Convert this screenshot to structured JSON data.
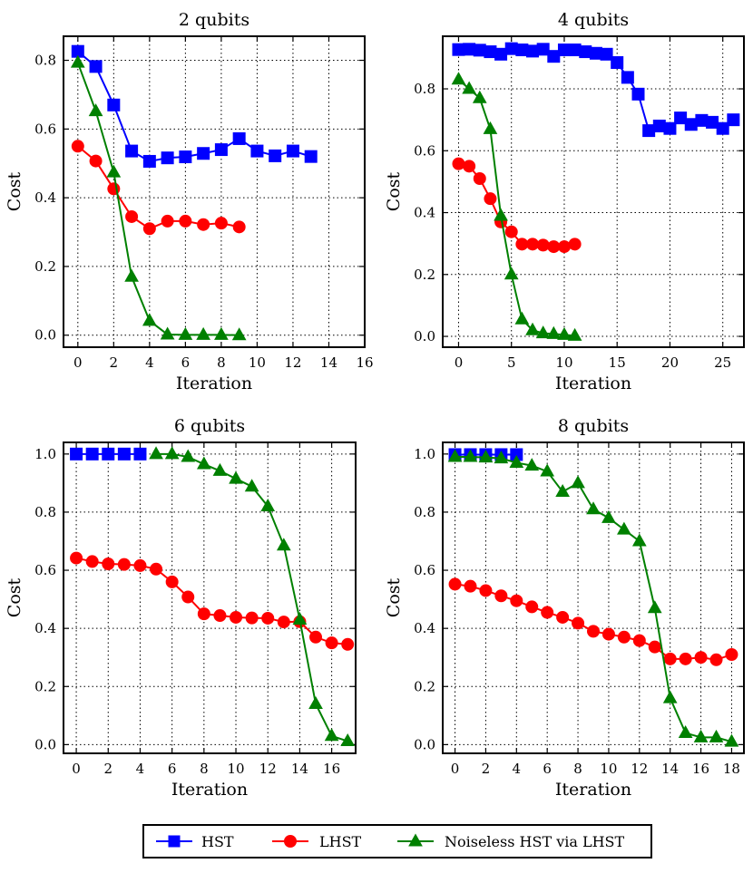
{
  "legend": {
    "entries": [
      {
        "label": "HST",
        "color": "#0000ff",
        "marker": "square"
      },
      {
        "label": "LHST",
        "color": "#ff0000",
        "marker": "circle"
      },
      {
        "label": "Noiseless HST via LHST",
        "color": "#008000",
        "marker": "triangle"
      }
    ]
  },
  "chart_data": [
    {
      "type": "line",
      "title": "2 qubits",
      "xlabel": "Iteration",
      "ylabel": "Cost",
      "xlim": [
        -0.8,
        16
      ],
      "ylim": [
        -0.035,
        0.87
      ],
      "xticks": [
        0,
        2,
        4,
        6,
        8,
        10,
        12,
        14,
        16
      ],
      "yticks": [
        0.0,
        0.2,
        0.4,
        0.6,
        0.8
      ],
      "grid": true,
      "series": [
        {
          "name": "HST",
          "x": [
            0,
            1,
            2,
            3,
            4,
            5,
            6,
            7,
            8,
            9,
            10,
            11,
            12,
            13
          ],
          "values": [
            0.826,
            0.782,
            0.67,
            0.536,
            0.506,
            0.516,
            0.519,
            0.529,
            0.54,
            0.572,
            0.536,
            0.522,
            0.536,
            0.52
          ]
        },
        {
          "name": "LHST",
          "x": [
            0,
            1,
            2,
            3,
            4,
            5,
            6,
            7,
            8,
            9
          ],
          "values": [
            0.55,
            0.507,
            0.426,
            0.345,
            0.31,
            0.332,
            0.332,
            0.322,
            0.326,
            0.315
          ]
        },
        {
          "name": "Noiseless HST via LHST",
          "x": [
            0,
            1,
            2,
            3,
            4,
            5,
            6,
            7,
            8,
            9
          ],
          "values": [
            0.793,
            0.652,
            0.474,
            0.17,
            0.042,
            0.002,
            0.001,
            0.001,
            0.001,
            0.0
          ]
        }
      ]
    },
    {
      "type": "line",
      "title": "4 qubits",
      "xlabel": "Iteration",
      "ylabel": "Cost",
      "xlim": [
        -1.5,
        27
      ],
      "ylim": [
        -0.035,
        0.97
      ],
      "xticks": [
        0,
        5,
        10,
        15,
        20,
        25
      ],
      "yticks": [
        0.0,
        0.2,
        0.4,
        0.6,
        0.8
      ],
      "grid": true,
      "series": [
        {
          "name": "HST",
          "x": [
            0,
            1,
            2,
            3,
            4,
            5,
            6,
            7,
            8,
            9,
            10,
            11,
            12,
            13,
            14,
            15,
            16,
            17,
            18,
            19,
            20,
            21,
            22,
            23,
            24,
            25,
            26
          ],
          "values": [
            0.927,
            0.928,
            0.925,
            0.92,
            0.912,
            0.93,
            0.926,
            0.922,
            0.928,
            0.905,
            0.926,
            0.926,
            0.92,
            0.915,
            0.912,
            0.885,
            0.837,
            0.783,
            0.665,
            0.68,
            0.672,
            0.706,
            0.685,
            0.698,
            0.692,
            0.672,
            0.7
          ]
        },
        {
          "name": "LHST",
          "x": [
            0,
            1,
            2,
            3,
            4,
            5,
            6,
            7,
            8,
            9,
            10,
            11
          ],
          "values": [
            0.558,
            0.55,
            0.51,
            0.445,
            0.37,
            0.338,
            0.298,
            0.298,
            0.295,
            0.29,
            0.29,
            0.298
          ]
        },
        {
          "name": "Noiseless HST via LHST",
          "x": [
            0,
            1,
            2,
            3,
            4,
            5,
            6,
            7,
            8,
            9,
            10,
            11
          ],
          "values": [
            0.83,
            0.8,
            0.77,
            0.67,
            0.39,
            0.2,
            0.055,
            0.02,
            0.01,
            0.008,
            0.005,
            0.002
          ]
        }
      ]
    },
    {
      "type": "line",
      "title": "6 qubits",
      "xlabel": "Iteration",
      "ylabel": "Cost",
      "xlim": [
        -0.8,
        17.5
      ],
      "ylim": [
        -0.03,
        1.04
      ],
      "xticks": [
        0,
        2,
        4,
        6,
        8,
        10,
        12,
        14,
        16
      ],
      "yticks": [
        0.0,
        0.2,
        0.4,
        0.6,
        0.8,
        1.0
      ],
      "grid": true,
      "series": [
        {
          "name": "HST",
          "x": [
            0,
            1,
            2,
            3,
            4
          ],
          "values": [
            1.0,
            1.0,
            1.0,
            1.0,
            1.0
          ]
        },
        {
          "name": "LHST",
          "x": [
            0,
            1,
            2,
            3,
            4,
            5,
            6,
            7,
            8,
            9,
            10,
            11,
            12,
            13,
            14,
            15,
            16,
            17
          ],
          "values": [
            0.642,
            0.63,
            0.622,
            0.62,
            0.616,
            0.604,
            0.56,
            0.508,
            0.45,
            0.444,
            0.438,
            0.436,
            0.435,
            0.422,
            0.423,
            0.37,
            0.35,
            0.345
          ]
        },
        {
          "name": "Noiseless HST via LHST",
          "x": [
            5,
            6,
            7,
            8,
            9,
            10,
            11,
            12,
            13,
            14,
            15,
            16,
            17
          ],
          "values": [
            1.0,
            1.0,
            0.99,
            0.965,
            0.942,
            0.915,
            0.888,
            0.82,
            0.685,
            0.43,
            0.14,
            0.03,
            0.012
          ]
        }
      ]
    },
    {
      "type": "line",
      "title": "8 qubits",
      "xlabel": "Iteration",
      "ylabel": "Cost",
      "xlim": [
        -0.8,
        18.8
      ],
      "ylim": [
        -0.03,
        1.04
      ],
      "xticks": [
        0,
        2,
        4,
        6,
        8,
        10,
        12,
        14,
        16,
        18
      ],
      "yticks": [
        0.0,
        0.2,
        0.4,
        0.6,
        0.8,
        1.0
      ],
      "grid": true,
      "series": [
        {
          "name": "HST",
          "x": [
            0,
            1,
            2,
            3,
            4
          ],
          "values": [
            0.998,
            0.998,
            0.998,
            0.998,
            0.998
          ]
        },
        {
          "name": "LHST",
          "x": [
            0,
            1,
            2,
            3,
            4,
            5,
            6,
            7,
            8,
            9,
            10,
            11,
            12,
            13,
            14,
            15,
            16,
            17,
            18
          ],
          "values": [
            0.552,
            0.545,
            0.53,
            0.512,
            0.495,
            0.474,
            0.455,
            0.438,
            0.418,
            0.39,
            0.38,
            0.37,
            0.358,
            0.336,
            0.295,
            0.295,
            0.3,
            0.292,
            0.31
          ]
        },
        {
          "name": "Noiseless HST via LHST",
          "x": [
            0,
            1,
            2,
            3,
            4,
            5,
            6,
            7,
            8,
            9,
            10,
            11,
            12,
            13,
            14,
            15,
            16,
            17,
            18
          ],
          "values": [
            0.99,
            0.99,
            0.988,
            0.985,
            0.97,
            0.96,
            0.94,
            0.87,
            0.9,
            0.81,
            0.78,
            0.74,
            0.7,
            0.47,
            0.16,
            0.04,
            0.025,
            0.025,
            0.01
          ]
        }
      ]
    }
  ]
}
